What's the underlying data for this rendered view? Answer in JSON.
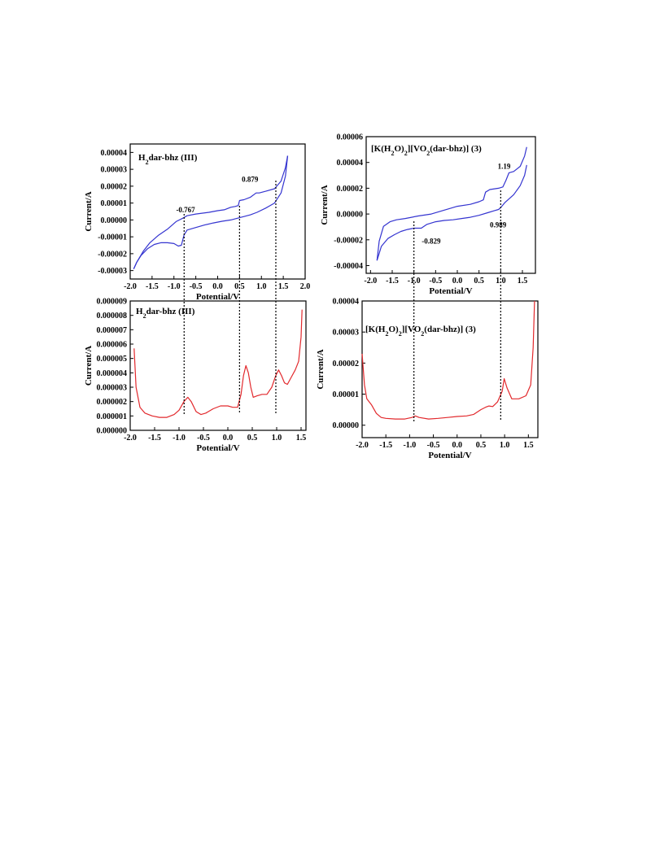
{
  "chart_data": [
    {
      "type": "line",
      "title": "H₂dar-bhz (III)",
      "xlabel": "Potential/V",
      "ylabel": "Current/A",
      "xlim": [
        -2.0,
        2.0
      ],
      "ylim": [
        -3.5e-05,
        4.5e-05
      ],
      "xticks": [
        "-2.0",
        "-1.5",
        "-1.0",
        "-0.5",
        "0.0",
        "0.5",
        "1.0",
        "1.5",
        "2.0"
      ],
      "xtick_values": [
        -2.0,
        -1.5,
        -1.0,
        -0.5,
        0.0,
        0.5,
        1.0,
        1.5,
        2.0
      ],
      "yticks": [
        "-0.00003",
        "-0.00002",
        "-0.00001",
        "0.00000",
        "0.00001",
        "0.00002",
        "0.00003",
        "0.00004"
      ],
      "ytick_values": [
        -3e-05,
        -2e-05,
        -1e-05,
        0.0,
        1e-05,
        2e-05,
        3e-05,
        4e-05
      ],
      "color": "#3434d0",
      "annotations": [
        {
          "text": "-0.767",
          "x": -0.95,
          "y": 4.5e-06
        },
        {
          "text": "0.879",
          "x": 0.55,
          "y": 2.25e-05
        }
      ],
      "guides_x": [
        -0.767,
        0.5,
        1.33
      ],
      "series": [
        {
          "x": [
            -1.92,
            -1.85,
            -1.75,
            -1.6,
            -1.45,
            -1.3,
            -1.15,
            -1.0,
            -0.9,
            -0.83,
            -0.77,
            -0.7,
            -0.5,
            -0.3,
            -0.1,
            0.1,
            0.3,
            0.45,
            0.52,
            0.6,
            0.75,
            0.9,
            1.1,
            1.3,
            1.45,
            1.55,
            1.6
          ],
          "y": [
            -2.9e-05,
            -2.5e-05,
            -2.1e-05,
            -1.7e-05,
            -1.45e-05,
            -1.35e-05,
            -1.35e-05,
            -1.4e-05,
            -1.55e-05,
            -1.5e-05,
            -9e-06,
            -6e-06,
            -4.5e-06,
            -3e-06,
            -1.8e-06,
            -8e-07,
            0.0,
            1e-06,
            1.5e-06,
            2e-06,
            3e-06,
            4.5e-06,
            7e-06,
            1e-05,
            1.6e-05,
            2.6e-05,
            3.8e-05
          ]
        },
        {
          "x": [
            1.6,
            1.55,
            1.45,
            1.3,
            1.1,
            0.95,
            0.88,
            0.75,
            0.6,
            0.5,
            0.47,
            0.4,
            0.3,
            0.15,
            0.0,
            -0.2,
            -0.5,
            -0.7,
            -0.8,
            -0.95,
            -1.15,
            -1.35,
            -1.55,
            -1.7,
            -1.85,
            -1.92
          ],
          "y": [
            3.8e-05,
            3.1e-05,
            2.3e-05,
            1.85e-05,
            1.7e-05,
            1.6e-05,
            1.6e-05,
            1.35e-05,
            1.2e-05,
            1.15e-05,
            8.5e-06,
            8e-06,
            7.5e-06,
            6e-06,
            5.5e-06,
            4.5e-06,
            3.5e-06,
            2.5e-06,
            1e-06,
            -1e-06,
            -5.5e-06,
            -9e-06,
            -1.35e-05,
            -1.85e-05,
            -2.5e-05,
            -2.9e-05
          ]
        }
      ]
    },
    {
      "type": "line",
      "title": "[K(H₂O)₂][VO₂(dar-bhz)] (3)",
      "xlabel": "Potential/V",
      "ylabel": "Current/A",
      "xlim": [
        -2.1,
        1.8
      ],
      "ylim": [
        -4.6e-05,
        6e-05
      ],
      "xticks": [
        "-2.0",
        "-1.5",
        "-1.0",
        "-0.5",
        "0.0",
        "0.5",
        "1.0",
        "1.5"
      ],
      "xtick_values": [
        -2.0,
        -1.5,
        -1.0,
        -0.5,
        0.0,
        0.5,
        1.0,
        1.5
      ],
      "yticks": [
        "-0.00004",
        "-0.00002",
        "0.00000",
        "0.00002",
        "0.00004",
        "0.00006"
      ],
      "ytick_values": [
        -4e-05,
        -2e-05,
        0.0,
        2e-05,
        4e-05,
        6e-05
      ],
      "color": "#3434d0",
      "annotations": [
        {
          "text": "1.19",
          "x": 0.93,
          "y": 3.5e-05
        },
        {
          "text": "0.989",
          "x": 0.75,
          "y": -1.05e-05
        },
        {
          "text": "-0.829",
          "x": -0.82,
          "y": -2.3e-05
        }
      ],
      "guides_x": [
        -1.0,
        1.0
      ],
      "series": [
        {
          "x": [
            -1.85,
            -1.75,
            -1.6,
            -1.45,
            -1.3,
            -1.15,
            -1.0,
            -0.9,
            -0.83,
            -0.7,
            -0.5,
            -0.3,
            -0.1,
            0.1,
            0.3,
            0.5,
            0.7,
            0.85,
            0.95,
            1.0,
            1.1,
            1.3,
            1.45,
            1.55,
            1.6
          ],
          "y": [
            -3.6e-05,
            -2.5e-05,
            -1.9e-05,
            -1.6e-05,
            -1.35e-05,
            -1.2e-05,
            -1.1e-05,
            -1.1e-05,
            -1.1e-05,
            -8e-06,
            -6e-06,
            -5e-06,
            -4.5e-06,
            -3.5e-06,
            -2.5e-06,
            -1e-06,
            1e-06,
            2.5e-06,
            3.5e-06,
            5e-06,
            9e-06,
            1.5e-05,
            2.2e-05,
            3e-05,
            3.8e-05
          ]
        },
        {
          "x": [
            1.6,
            1.55,
            1.45,
            1.3,
            1.19,
            1.12,
            1.05,
            0.95,
            0.75,
            0.65,
            0.6,
            0.5,
            0.3,
            0.0,
            -0.3,
            -0.6,
            -0.9,
            -1.2,
            -1.4,
            -1.55,
            -1.7,
            -1.8,
            -1.85
          ],
          "y": [
            5.2e-05,
            4.5e-05,
            3.7e-05,
            3.3e-05,
            3.2e-05,
            2.6e-05,
            2.1e-05,
            2e-05,
            1.9e-05,
            1.7e-05,
            1.1e-05,
            9.5e-06,
            7.5e-06,
            6e-06,
            3e-06,
            0.0,
            -1.5e-06,
            -3.5e-06,
            -4.5e-06,
            -6e-06,
            -9.5e-06,
            -2.1e-05,
            -3.6e-05
          ]
        }
      ]
    },
    {
      "type": "line",
      "title": "H₂dar-bhz (III)",
      "xlabel": "Potential/V",
      "ylabel": "Current/A",
      "xlim": [
        -2.0,
        1.6
      ],
      "ylim": [
        0.0,
        9e-06
      ],
      "xticks": [
        "-2.0",
        "-1.5",
        "-1.0",
        "-0.5",
        "0.0",
        "0.5",
        "1.0",
        "1.5"
      ],
      "xtick_values": [
        -2.0,
        -1.5,
        -1.0,
        -0.5,
        0.0,
        0.5,
        1.0,
        1.5
      ],
      "yticks": [
        "0.000000",
        "0.000001",
        "0.000002",
        "0.000003",
        "0.000004",
        "0.000005",
        "0.000006",
        "0.000007",
        "0.000008",
        "0.000009"
      ],
      "ytick_values": [
        0.0,
        1e-06,
        2e-06,
        3e-06,
        4e-06,
        5e-06,
        6e-06,
        7e-06,
        8e-06,
        9e-06
      ],
      "color": "#e2292d",
      "annotations": [],
      "series": [
        {
          "x": [
            -1.92,
            -1.88,
            -1.8,
            -1.7,
            -1.55,
            -1.4,
            -1.25,
            -1.1,
            -1.0,
            -0.9,
            -0.82,
            -0.75,
            -0.65,
            -0.55,
            -0.45,
            -0.3,
            -0.15,
            0.0,
            0.1,
            0.2,
            0.27,
            0.32,
            0.37,
            0.42,
            0.47,
            0.52,
            0.6,
            0.7,
            0.8,
            0.9,
            0.98,
            1.04,
            1.1,
            1.16,
            1.22,
            1.3,
            1.38,
            1.45,
            1.5,
            1.52
          ],
          "y": [
            5.7e-06,
            3e-06,
            1.6e-06,
            1.2e-06,
            1e-06,
            9e-07,
            9e-07,
            1.1e-06,
            1.4e-06,
            2e-06,
            2.3e-06,
            2e-06,
            1.3e-06,
            1.1e-06,
            1.2e-06,
            1.5e-06,
            1.7e-06,
            1.7e-06,
            1.6e-06,
            1.6e-06,
            2.5e-06,
            3.8e-06,
            4.5e-06,
            4e-06,
            3e-06,
            2.3e-06,
            2.4e-06,
            2.5e-06,
            2.5e-06,
            3e-06,
            3.8e-06,
            4.2e-06,
            3.8e-06,
            3.3e-06,
            3.2e-06,
            3.7e-06,
            4.2e-06,
            4.8e-06,
            6.5e-06,
            8.4e-06
          ]
        }
      ]
    },
    {
      "type": "line",
      "title": "[K(H₂O)₂][VO₂(dar-bhz)] (3)",
      "xlabel": "Potential/V",
      "ylabel": "Current/A",
      "xlim": [
        -2.0,
        1.7
      ],
      "ylim": [
        -4e-06,
        4e-05
      ],
      "xticks": [
        "-2.0",
        "-1.5",
        "-1.0",
        "-0.5",
        "0.0",
        "0.5",
        "1.0",
        "1.5"
      ],
      "xtick_values": [
        -2.0,
        -1.5,
        -1.0,
        -0.5,
        0.0,
        0.5,
        1.0,
        1.5
      ],
      "yticks": [
        "0.00000",
        "0.00001",
        "0.00002",
        "0.00003",
        "0.00004"
      ],
      "ytick_values": [
        0.0,
        1e-05,
        2e-05,
        3e-05,
        4e-05
      ],
      "color": "#e2292d",
      "annotations": [],
      "series": [
        {
          "x": [
            -2.0,
            -1.95,
            -1.9,
            -1.8,
            -1.7,
            -1.6,
            -1.5,
            -1.3,
            -1.1,
            -0.95,
            -0.88,
            -0.8,
            -0.6,
            -0.4,
            -0.2,
            0.0,
            0.2,
            0.35,
            0.5,
            0.6,
            0.67,
            0.75,
            0.85,
            0.95,
            0.99,
            1.05,
            1.15,
            1.3,
            1.45,
            1.55,
            1.6,
            1.63
          ],
          "y": [
            2.3e-05,
            1.3e-05,
            8.5e-06,
            6.5e-06,
            3.8e-06,
            2.5e-06,
            2.2e-06,
            2e-06,
            2e-06,
            2.5e-06,
            3e-06,
            2.5e-06,
            2e-06,
            2.2e-06,
            2.5e-06,
            2.8e-06,
            3e-06,
            3.5e-06,
            5e-06,
            5.8e-06,
            6.2e-06,
            6e-06,
            7.5e-06,
            1.1e-05,
            1.5e-05,
            1.2e-05,
            8.5e-06,
            8.5e-06,
            9.5e-06,
            1.3e-05,
            2.5e-05,
            4e-05
          ]
        }
      ]
    }
  ]
}
